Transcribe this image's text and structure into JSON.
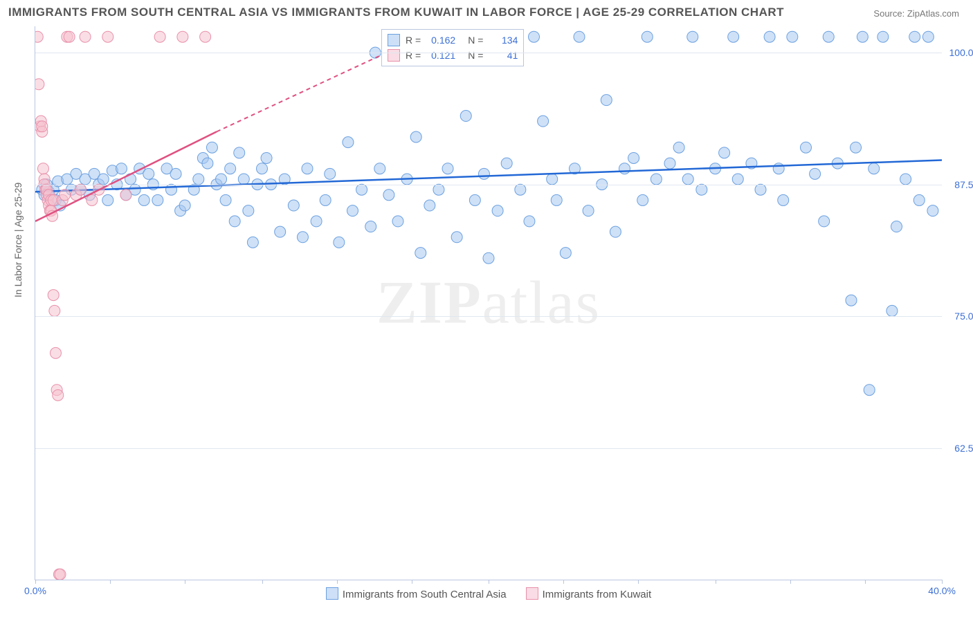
{
  "title": "IMMIGRANTS FROM SOUTH CENTRAL ASIA VS IMMIGRANTS FROM KUWAIT IN LABOR FORCE | AGE 25-29 CORRELATION CHART",
  "source_label": "Source:",
  "source_value": "ZipAtlas.com",
  "y_axis_label": "In Labor Force | Age 25-29",
  "watermark_prefix": "ZIP",
  "watermark_suffix": "atlas",
  "chart": {
    "type": "scatter",
    "xlim": [
      0.0,
      40.0
    ],
    "ylim": [
      50.0,
      102.5
    ],
    "xticks": [
      0.0,
      3.3,
      6.6,
      10.0,
      13.3,
      16.6,
      20.0,
      23.3,
      26.6,
      30.0,
      33.3,
      36.6,
      40.0
    ],
    "xtick_labels_shown": {
      "0": "0.0%",
      "12": "40.0%"
    },
    "yticks": [
      62.5,
      75.0,
      87.5,
      100.0
    ],
    "ytick_labels": [
      "62.5%",
      "75.0%",
      "87.5%",
      "100.0%"
    ],
    "grid_color": "#e0e6f0",
    "axis_color": "#b8c6e0",
    "background": "#ffffff",
    "marker_radius": 8,
    "marker_opacity": 0.55,
    "series": [
      {
        "name": "Immigrants from South Central Asia",
        "color_fill": "#a8c8f0",
        "color_stroke": "#6ba0e0",
        "swatch_fill": "#cde0f7",
        "swatch_stroke": "#6ba0e0",
        "trend_color": "#2268d6",
        "trend": {
          "x1": 0.0,
          "y1": 86.8,
          "x2": 40.0,
          "y2": 89.8
        },
        "R_label": "R =",
        "R": "0.162",
        "N_label": "N =",
        "N": "134",
        "points": [
          [
            0.3,
            87.0
          ],
          [
            0.4,
            86.5
          ],
          [
            0.5,
            87.5
          ],
          [
            0.6,
            86.8
          ],
          [
            0.8,
            87.0
          ],
          [
            0.9,
            86.0
          ],
          [
            1.0,
            87.8
          ],
          [
            1.1,
            85.5
          ],
          [
            1.4,
            88.0
          ],
          [
            1.6,
            87.0
          ],
          [
            1.8,
            88.5
          ],
          [
            2.0,
            87.0
          ],
          [
            2.2,
            88.0
          ],
          [
            2.4,
            86.5
          ],
          [
            2.6,
            88.5
          ],
          [
            2.8,
            87.5
          ],
          [
            3.0,
            88.0
          ],
          [
            3.2,
            86.0
          ],
          [
            3.4,
            88.8
          ],
          [
            3.6,
            87.5
          ],
          [
            3.8,
            89.0
          ],
          [
            4.0,
            86.5
          ],
          [
            4.2,
            88.0
          ],
          [
            4.4,
            87.0
          ],
          [
            4.6,
            89.0
          ],
          [
            4.8,
            86.0
          ],
          [
            5.0,
            88.5
          ],
          [
            5.2,
            87.5
          ],
          [
            5.4,
            86.0
          ],
          [
            5.8,
            89.0
          ],
          [
            6.0,
            87.0
          ],
          [
            6.2,
            88.5
          ],
          [
            6.4,
            85.0
          ],
          [
            6.6,
            85.5
          ],
          [
            7.0,
            87.0
          ],
          [
            7.2,
            88.0
          ],
          [
            7.4,
            90.0
          ],
          [
            7.6,
            89.5
          ],
          [
            7.8,
            91.0
          ],
          [
            8.0,
            87.5
          ],
          [
            8.2,
            88.0
          ],
          [
            8.4,
            86.0
          ],
          [
            8.6,
            89.0
          ],
          [
            8.8,
            84.0
          ],
          [
            9.0,
            90.5
          ],
          [
            9.2,
            88.0
          ],
          [
            9.4,
            85.0
          ],
          [
            9.6,
            82.0
          ],
          [
            9.8,
            87.5
          ],
          [
            10.0,
            89.0
          ],
          [
            10.2,
            90.0
          ],
          [
            10.4,
            87.5
          ],
          [
            10.8,
            83.0
          ],
          [
            11.0,
            88.0
          ],
          [
            11.4,
            85.5
          ],
          [
            11.8,
            82.5
          ],
          [
            12.0,
            89.0
          ],
          [
            12.4,
            84.0
          ],
          [
            12.8,
            86.0
          ],
          [
            13.0,
            88.5
          ],
          [
            13.4,
            82.0
          ],
          [
            13.8,
            91.5
          ],
          [
            14.0,
            85.0
          ],
          [
            14.4,
            87.0
          ],
          [
            14.8,
            83.5
          ],
          [
            15.0,
            100.0
          ],
          [
            15.2,
            89.0
          ],
          [
            15.6,
            86.5
          ],
          [
            16.0,
            84.0
          ],
          [
            16.4,
            88.0
          ],
          [
            16.8,
            92.0
          ],
          [
            17.0,
            81.0
          ],
          [
            17.4,
            85.5
          ],
          [
            17.8,
            87.0
          ],
          [
            18.0,
            101.5
          ],
          [
            18.2,
            89.0
          ],
          [
            18.6,
            82.5
          ],
          [
            19.0,
            94.0
          ],
          [
            19.4,
            86.0
          ],
          [
            19.8,
            88.5
          ],
          [
            20.0,
            80.5
          ],
          [
            20.4,
            85.0
          ],
          [
            20.8,
            89.5
          ],
          [
            21.0,
            101.5
          ],
          [
            21.4,
            87.0
          ],
          [
            21.8,
            84.0
          ],
          [
            22.0,
            101.5
          ],
          [
            22.4,
            93.5
          ],
          [
            22.8,
            88.0
          ],
          [
            23.0,
            86.0
          ],
          [
            23.4,
            81.0
          ],
          [
            23.8,
            89.0
          ],
          [
            24.0,
            101.5
          ],
          [
            24.4,
            85.0
          ],
          [
            25.0,
            87.5
          ],
          [
            25.2,
            95.5
          ],
          [
            25.6,
            83.0
          ],
          [
            26.0,
            89.0
          ],
          [
            26.4,
            90.0
          ],
          [
            26.8,
            86.0
          ],
          [
            27.0,
            101.5
          ],
          [
            27.4,
            88.0
          ],
          [
            28.0,
            89.5
          ],
          [
            28.4,
            91.0
          ],
          [
            28.8,
            88.0
          ],
          [
            29.0,
            101.5
          ],
          [
            29.4,
            87.0
          ],
          [
            30.0,
            89.0
          ],
          [
            30.4,
            90.5
          ],
          [
            30.8,
            101.5
          ],
          [
            31.0,
            88.0
          ],
          [
            31.6,
            89.5
          ],
          [
            32.0,
            87.0
          ],
          [
            32.4,
            101.5
          ],
          [
            32.8,
            89.0
          ],
          [
            33.0,
            86.0
          ],
          [
            33.4,
            101.5
          ],
          [
            34.0,
            91.0
          ],
          [
            34.4,
            88.5
          ],
          [
            34.8,
            84.0
          ],
          [
            35.0,
            101.5
          ],
          [
            35.4,
            89.5
          ],
          [
            36.0,
            76.5
          ],
          [
            36.2,
            91.0
          ],
          [
            36.5,
            101.5
          ],
          [
            36.8,
            68.0
          ],
          [
            37.0,
            89.0
          ],
          [
            37.4,
            101.5
          ],
          [
            37.8,
            75.5
          ],
          [
            38.0,
            83.5
          ],
          [
            38.4,
            88.0
          ],
          [
            38.8,
            101.5
          ],
          [
            39.0,
            86.0
          ],
          [
            39.4,
            101.5
          ],
          [
            39.6,
            85.0
          ]
        ]
      },
      {
        "name": "Immigrants from Kuwait",
        "color_fill": "#f5c2d0",
        "color_stroke": "#e890aa",
        "swatch_fill": "#f9dce5",
        "swatch_stroke": "#e890aa",
        "trend_color": "#e05080",
        "trend_solid": {
          "x1": 0.0,
          "y1": 84.0,
          "x2": 8.0,
          "y2": 92.5
        },
        "trend_dashed": {
          "x1": 8.0,
          "y1": 92.5,
          "x2": 17.0,
          "y2": 101.5
        },
        "R_label": "R =",
        "R": "0.121",
        "N_label": "N =",
        "N": "41",
        "points": [
          [
            0.1,
            101.5
          ],
          [
            0.15,
            97.0
          ],
          [
            0.2,
            93.0
          ],
          [
            0.25,
            93.5
          ],
          [
            0.3,
            92.5
          ],
          [
            0.3,
            93.0
          ],
          [
            0.35,
            89.0
          ],
          [
            0.4,
            88.0
          ],
          [
            0.4,
            87.5
          ],
          [
            0.45,
            87.0
          ],
          [
            0.5,
            86.5
          ],
          [
            0.5,
            87.0
          ],
          [
            0.55,
            86.0
          ],
          [
            0.6,
            86.5
          ],
          [
            0.6,
            85.5
          ],
          [
            0.65,
            85.0
          ],
          [
            0.7,
            86.0
          ],
          [
            0.7,
            85.0
          ],
          [
            0.75,
            84.5
          ],
          [
            0.8,
            86.0
          ],
          [
            0.8,
            77.0
          ],
          [
            0.85,
            75.5
          ],
          [
            0.9,
            71.5
          ],
          [
            0.95,
            68.0
          ],
          [
            1.0,
            67.5
          ],
          [
            1.05,
            50.5
          ],
          [
            1.1,
            50.5
          ],
          [
            1.2,
            86.0
          ],
          [
            1.3,
            86.5
          ],
          [
            1.4,
            101.5
          ],
          [
            1.5,
            101.5
          ],
          [
            1.8,
            86.5
          ],
          [
            2.0,
            87.0
          ],
          [
            2.2,
            101.5
          ],
          [
            2.5,
            86.0
          ],
          [
            2.8,
            87.0
          ],
          [
            3.2,
            101.5
          ],
          [
            4.0,
            86.5
          ],
          [
            5.5,
            101.5
          ],
          [
            6.5,
            101.5
          ],
          [
            7.5,
            101.5
          ]
        ]
      }
    ]
  },
  "bottom_legend": [
    {
      "swatch_fill": "#cde0f7",
      "swatch_stroke": "#6ba0e0",
      "label": "Immigrants from South Central Asia"
    },
    {
      "swatch_fill": "#f9dce5",
      "swatch_stroke": "#e890aa",
      "label": "Immigrants from Kuwait"
    }
  ]
}
